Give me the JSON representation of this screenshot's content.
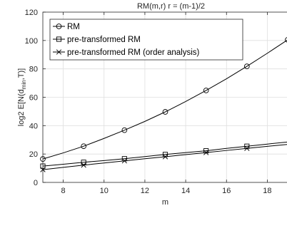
{
  "chart_data": {
    "type": "line",
    "title": "RM(m,r) r = (m-1)/2",
    "xlabel": "m",
    "ylabel_parts": {
      "main": "log2 E[N(d",
      "sub": "min",
      "tail": ",T)]"
    },
    "xlim": [
      7,
      19
    ],
    "ylim": [
      0,
      120
    ],
    "xticks": [
      8,
      10,
      12,
      14,
      16,
      18
    ],
    "yticks": [
      0,
      20,
      40,
      60,
      80,
      100,
      120
    ],
    "grid": true,
    "legend_position": "top-left",
    "series": [
      {
        "name": "RM",
        "marker": "circle",
        "x": [
          7,
          9,
          11,
          13,
          15,
          17,
          19
        ],
        "y": [
          16.5,
          25.5,
          36.8,
          49.7,
          64.8,
          81.8,
          100.5
        ],
        "curve": [
          [
            7,
            16.5
          ],
          [
            8,
            20.8
          ],
          [
            9,
            25.5
          ],
          [
            10,
            31
          ],
          [
            11,
            36.8
          ],
          [
            12,
            43
          ],
          [
            13,
            49.7
          ],
          [
            14,
            57
          ],
          [
            15,
            64.8
          ],
          [
            16,
            73
          ],
          [
            17,
            81.8
          ],
          [
            18,
            91
          ],
          [
            19,
            100.5
          ]
        ]
      },
      {
        "name": "pre-transformed RM",
        "marker": "square",
        "x": [
          7,
          9,
          11,
          13,
          15,
          17
        ],
        "y": [
          11.5,
          14.2,
          16.7,
          19.7,
          22.3,
          25.5
        ],
        "curve": [
          [
            7,
            11.5
          ],
          [
            8,
            12.8
          ],
          [
            9,
            14.2
          ],
          [
            10,
            15.4
          ],
          [
            11,
            16.7
          ],
          [
            12,
            18.2
          ],
          [
            13,
            19.7
          ],
          [
            14,
            21
          ],
          [
            15,
            22.3
          ],
          [
            16,
            24
          ],
          [
            17,
            25.5
          ],
          [
            18,
            27
          ],
          [
            19,
            28.5
          ]
        ]
      },
      {
        "name": "pre-transformed RM (order analysis)",
        "marker": "x",
        "x": [
          7,
          9,
          11,
          13,
          15,
          17
        ],
        "y": [
          9,
          12.2,
          15.2,
          18.1,
          21,
          24
        ],
        "curve": [
          [
            7,
            9
          ],
          [
            8,
            10.6
          ],
          [
            9,
            12.2
          ],
          [
            10,
            13.7
          ],
          [
            11,
            15.2
          ],
          [
            12,
            16.7
          ],
          [
            13,
            18.1
          ],
          [
            14,
            19.6
          ],
          [
            15,
            21
          ],
          [
            16,
            22.5
          ],
          [
            17,
            24
          ],
          [
            18,
            25.4
          ],
          [
            19,
            26.8
          ]
        ]
      }
    ]
  }
}
